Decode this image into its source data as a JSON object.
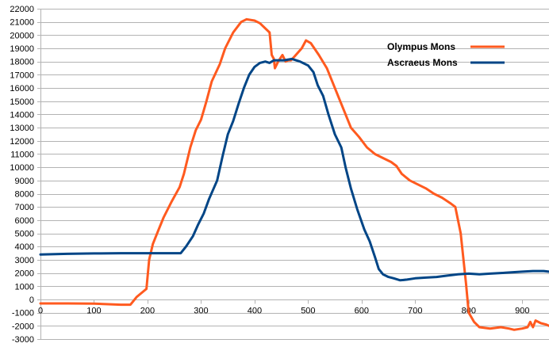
{
  "chart_data": {
    "type": "line",
    "title": "",
    "xlabel": "",
    "ylabel": "",
    "xlim": [
      0,
      950
    ],
    "ylim": [
      -3000,
      22000
    ],
    "x_ticks": [
      0,
      100,
      200,
      300,
      400,
      500,
      600,
      700,
      800,
      900
    ],
    "y_ticks": [
      -3000,
      -2000,
      -1000,
      0,
      1000,
      2000,
      3000,
      4000,
      5000,
      6000,
      7000,
      8000,
      9000,
      10000,
      11000,
      12000,
      13000,
      14000,
      15000,
      16000,
      17000,
      18000,
      19000,
      20000,
      21000,
      22000
    ],
    "grid": "horizontal",
    "legend_position": "top-right",
    "series": [
      {
        "name": "Olympus Mons",
        "color": "#ff5a1f",
        "points": [
          [
            0,
            -300
          ],
          [
            50,
            -300
          ],
          [
            100,
            -320
          ],
          [
            150,
            -400
          ],
          [
            168,
            -400
          ],
          [
            180,
            200
          ],
          [
            198,
            800
          ],
          [
            203,
            3000
          ],
          [
            210,
            4200
          ],
          [
            220,
            5200
          ],
          [
            230,
            6200
          ],
          [
            245,
            7400
          ],
          [
            260,
            8500
          ],
          [
            268,
            9500
          ],
          [
            280,
            11500
          ],
          [
            290,
            12800
          ],
          [
            300,
            13600
          ],
          [
            310,
            15000
          ],
          [
            320,
            16500
          ],
          [
            335,
            17800
          ],
          [
            345,
            19000
          ],
          [
            360,
            20200
          ],
          [
            375,
            21000
          ],
          [
            385,
            21200
          ],
          [
            400,
            21100
          ],
          [
            410,
            20900
          ],
          [
            428,
            20200
          ],
          [
            432,
            18500
          ],
          [
            436,
            18200
          ],
          [
            438,
            17500
          ],
          [
            444,
            18000
          ],
          [
            452,
            18500
          ],
          [
            458,
            18000
          ],
          [
            463,
            18100
          ],
          [
            468,
            18100
          ],
          [
            475,
            18400
          ],
          [
            488,
            19000
          ],
          [
            496,
            19600
          ],
          [
            505,
            19400
          ],
          [
            520,
            18500
          ],
          [
            535,
            17500
          ],
          [
            550,
            16000
          ],
          [
            565,
            14500
          ],
          [
            580,
            13000
          ],
          [
            595,
            12300
          ],
          [
            610,
            11500
          ],
          [
            625,
            11000
          ],
          [
            640,
            10700
          ],
          [
            655,
            10400
          ],
          [
            665,
            10100
          ],
          [
            675,
            9500
          ],
          [
            690,
            9000
          ],
          [
            705,
            8700
          ],
          [
            720,
            8400
          ],
          [
            735,
            8000
          ],
          [
            750,
            7700
          ],
          [
            765,
            7300
          ],
          [
            775,
            7000
          ],
          [
            785,
            5000
          ],
          [
            795,
            1200
          ],
          [
            800,
            -1000
          ],
          [
            810,
            -1700
          ],
          [
            820,
            -2100
          ],
          [
            840,
            -2200
          ],
          [
            860,
            -2100
          ],
          [
            875,
            -2200
          ],
          [
            885,
            -2300
          ],
          [
            900,
            -2200
          ],
          [
            910,
            -2100
          ],
          [
            915,
            -1700
          ],
          [
            920,
            -2100
          ],
          [
            925,
            -1600
          ],
          [
            935,
            -1800
          ],
          [
            945,
            -1900
          ],
          [
            950,
            -2000
          ]
        ]
      },
      {
        "name": "Ascraeus Mons",
        "color": "#004586",
        "points": [
          [
            0,
            3400
          ],
          [
            50,
            3450
          ],
          [
            100,
            3480
          ],
          [
            150,
            3500
          ],
          [
            200,
            3500
          ],
          [
            240,
            3500
          ],
          [
            262,
            3500
          ],
          [
            272,
            4000
          ],
          [
            285,
            4800
          ],
          [
            295,
            5700
          ],
          [
            305,
            6500
          ],
          [
            315,
            7600
          ],
          [
            330,
            9000
          ],
          [
            340,
            10800
          ],
          [
            350,
            12500
          ],
          [
            360,
            13500
          ],
          [
            370,
            14800
          ],
          [
            380,
            16000
          ],
          [
            390,
            17000
          ],
          [
            400,
            17600
          ],
          [
            410,
            17900
          ],
          [
            420,
            18000
          ],
          [
            428,
            17900
          ],
          [
            436,
            18100
          ],
          [
            455,
            18100
          ],
          [
            470,
            18200
          ],
          [
            485,
            18000
          ],
          [
            500,
            17700
          ],
          [
            510,
            17200
          ],
          [
            518,
            16200
          ],
          [
            528,
            15400
          ],
          [
            538,
            14000
          ],
          [
            550,
            12500
          ],
          [
            562,
            11500
          ],
          [
            570,
            10000
          ],
          [
            580,
            8400
          ],
          [
            592,
            6800
          ],
          [
            605,
            5300
          ],
          [
            615,
            4400
          ],
          [
            625,
            3200
          ],
          [
            632,
            2300
          ],
          [
            640,
            1900
          ],
          [
            650,
            1700
          ],
          [
            660,
            1600
          ],
          [
            672,
            1450
          ],
          [
            685,
            1500
          ],
          [
            700,
            1600
          ],
          [
            720,
            1650
          ],
          [
            740,
            1700
          ],
          [
            760,
            1800
          ],
          [
            780,
            1900
          ],
          [
            800,
            1950
          ],
          [
            820,
            1900
          ],
          [
            840,
            1950
          ],
          [
            860,
            2000
          ],
          [
            880,
            2050
          ],
          [
            900,
            2100
          ],
          [
            920,
            2150
          ],
          [
            940,
            2150
          ],
          [
            950,
            2100
          ]
        ]
      }
    ]
  }
}
